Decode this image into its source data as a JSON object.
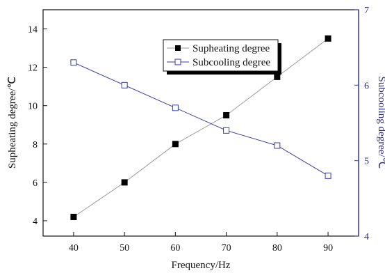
{
  "chart_data": {
    "type": "line",
    "x": [
      40,
      50,
      60,
      70,
      80,
      90
    ],
    "xlabel": "Frequency/Hz",
    "xlim": [
      34,
      96
    ],
    "xticks": [
      "40",
      "50",
      "60",
      "70",
      "80",
      "90"
    ],
    "series": [
      {
        "name": "Supheating degree",
        "axis": "left",
        "values": [
          4.2,
          6.0,
          8.0,
          9.5,
          11.5,
          13.5
        ],
        "color": "#000000",
        "marker": "filled-square",
        "line_color": "#9a9a9a"
      },
      {
        "name": "Subcooling degree",
        "axis": "right",
        "values": [
          6.3,
          6.0,
          5.7,
          5.4,
          5.2,
          4.8
        ],
        "color": "#3a3aa0",
        "marker": "open-square",
        "line_color": "#3a3aa0"
      }
    ],
    "ylabel_left": "Supheating degree/℃",
    "ylim_left": [
      3.2,
      15.0
    ],
    "yticks_left": [
      "4",
      "6",
      "8",
      "10",
      "12",
      "14"
    ],
    "ylabel_right": "Subcooling degree/℃",
    "ylim_right": [
      4,
      7
    ],
    "yticks_right": [
      "4",
      "5",
      "6",
      "7"
    ],
    "legend_position": "top-right",
    "grid": false
  }
}
